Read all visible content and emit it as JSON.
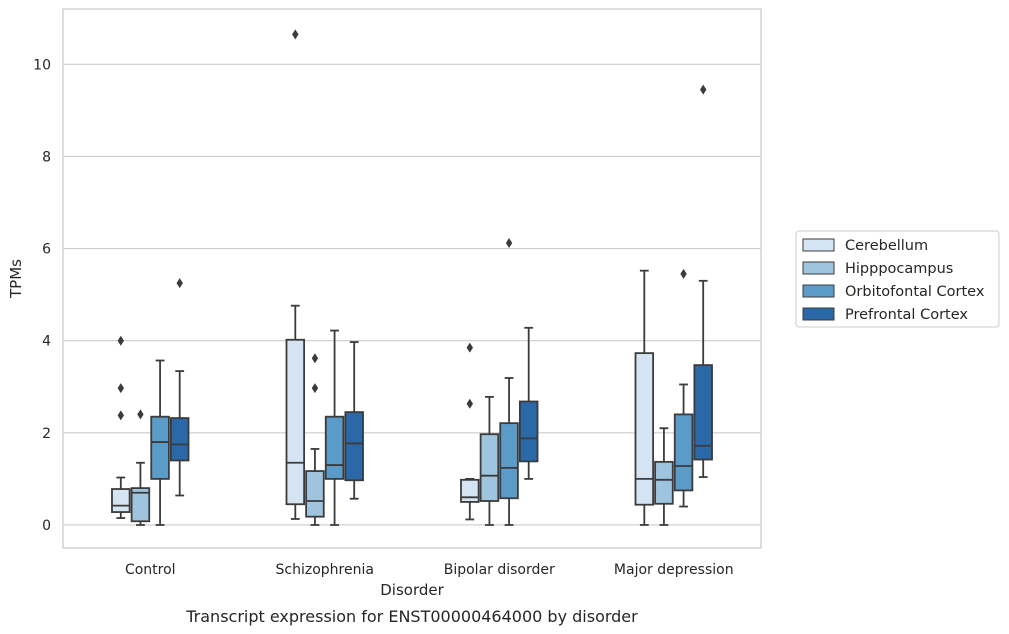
{
  "chart_data": {
    "type": "boxplot",
    "title": "",
    "caption": "Transcript expression for ENST00000464000 by disorder",
    "xlabel": "Disorder",
    "ylabel": "TPMs",
    "ylim": [
      -0.5,
      11.2
    ],
    "yticks": [
      0,
      2,
      4,
      6,
      8,
      10
    ],
    "grid": "horizontal",
    "legend_position": "right",
    "categories": [
      "Control",
      "Schizophrenia",
      "Bipolar disorder",
      "Major depression"
    ],
    "series": [
      {
        "name": "Cerebellum",
        "color": "#d5e4f2",
        "boxes": [
          {
            "whisker_low": 0.15,
            "q1": 0.28,
            "median": 0.42,
            "q3": 0.78,
            "whisker_high": 1.03,
            "outliers": [
              4.0,
              2.97,
              2.38
            ]
          },
          {
            "whisker_low": 0.13,
            "q1": 0.45,
            "median": 1.35,
            "q3": 4.02,
            "whisker_high": 4.76,
            "outliers": [
              10.65
            ]
          },
          {
            "whisker_low": 0.12,
            "q1": 0.5,
            "median": 0.6,
            "q3": 0.98,
            "whisker_high": 1.0,
            "outliers": [
              3.85,
              2.63
            ]
          },
          {
            "whisker_low": 0.0,
            "q1": 0.44,
            "median": 1.0,
            "q3": 3.73,
            "whisker_high": 5.52,
            "outliers": []
          }
        ]
      },
      {
        "name": "Hipppocampus",
        "color": "#9ec4de",
        "boxes": [
          {
            "whisker_low": 0.0,
            "q1": 0.08,
            "median": 0.7,
            "q3": 0.8,
            "whisker_high": 1.35,
            "outliers": [
              2.4
            ]
          },
          {
            "whisker_low": 0.0,
            "q1": 0.18,
            "median": 0.52,
            "q3": 1.17,
            "whisker_high": 1.65,
            "outliers": [
              3.62,
              2.97
            ]
          },
          {
            "whisker_low": 0.0,
            "q1": 0.52,
            "median": 1.07,
            "q3": 1.97,
            "whisker_high": 2.78,
            "outliers": []
          },
          {
            "whisker_low": 0.0,
            "q1": 0.46,
            "median": 0.98,
            "q3": 1.37,
            "whisker_high": 2.1,
            "outliers": []
          }
        ]
      },
      {
        "name": "Orbitofontal Cortex",
        "color": "#5b9bc8",
        "boxes": [
          {
            "whisker_low": 0.0,
            "q1": 1.0,
            "median": 1.8,
            "q3": 2.35,
            "whisker_high": 3.57,
            "outliers": []
          },
          {
            "whisker_low": 0.0,
            "q1": 1.0,
            "median": 1.3,
            "q3": 2.35,
            "whisker_high": 4.22,
            "outliers": []
          },
          {
            "whisker_low": 0.0,
            "q1": 0.58,
            "median": 1.24,
            "q3": 2.21,
            "whisker_high": 3.19,
            "outliers": [
              6.12
            ]
          },
          {
            "whisker_low": 0.4,
            "q1": 0.75,
            "median": 1.28,
            "q3": 2.4,
            "whisker_high": 3.05,
            "outliers": [
              5.45
            ]
          }
        ]
      },
      {
        "name": "Prefrontal Cortex",
        "color": "#2a68a8",
        "boxes": [
          {
            "whisker_low": 0.64,
            "q1": 1.4,
            "median": 1.75,
            "q3": 2.32,
            "whisker_high": 3.34,
            "outliers": [
              5.25
            ]
          },
          {
            "whisker_low": 0.57,
            "q1": 0.97,
            "median": 1.77,
            "q3": 2.45,
            "whisker_high": 3.97,
            "outliers": []
          },
          {
            "whisker_low": 1.0,
            "q1": 1.38,
            "median": 1.88,
            "q3": 2.68,
            "whisker_high": 4.28,
            "outliers": []
          },
          {
            "whisker_low": 1.04,
            "q1": 1.42,
            "median": 1.72,
            "q3": 3.47,
            "whisker_high": 5.3,
            "outliers": [
              9.45
            ]
          }
        ]
      }
    ]
  }
}
